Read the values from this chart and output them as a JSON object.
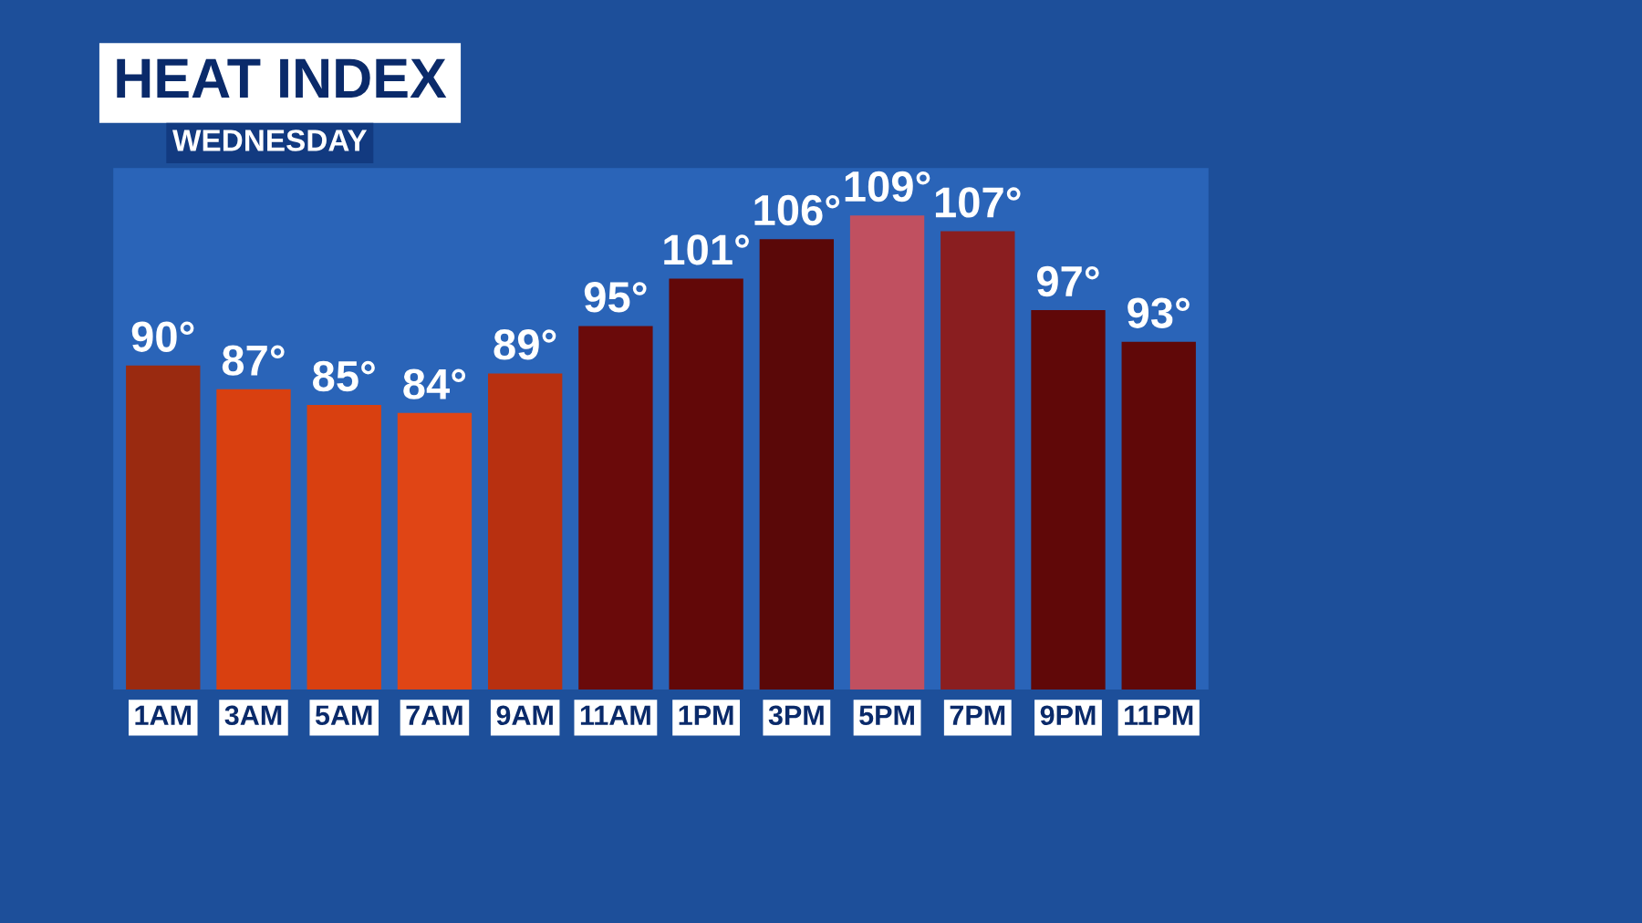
{
  "chart_data": {
    "type": "bar",
    "title": "HEAT INDEX",
    "subtitle": "WEDNESDAY",
    "categories": [
      "1AM",
      "3AM",
      "5AM",
      "7AM",
      "9AM",
      "11AM",
      "1PM",
      "3PM",
      "5PM",
      "7PM",
      "9PM",
      "11PM"
    ],
    "values": [
      90,
      87,
      85,
      84,
      89,
      95,
      101,
      106,
      109,
      107,
      97,
      93
    ],
    "value_labels": [
      "90°",
      "87°",
      "85°",
      "84°",
      "89°",
      "95°",
      "101°",
      "106°",
      "109°",
      "107°",
      "97°",
      "93°"
    ],
    "colors": [
      "#9a2a10",
      "#d94010",
      "#d94010",
      "#e04515",
      "#b83010",
      "#6a0a0a",
      "#620808",
      "#5a0808",
      "#c05060",
      "#8a1e20",
      "#600808",
      "#600808"
    ],
    "ylim": [
      49,
      115
    ],
    "tick_labels": "x",
    "grid": false,
    "legend": false
  }
}
